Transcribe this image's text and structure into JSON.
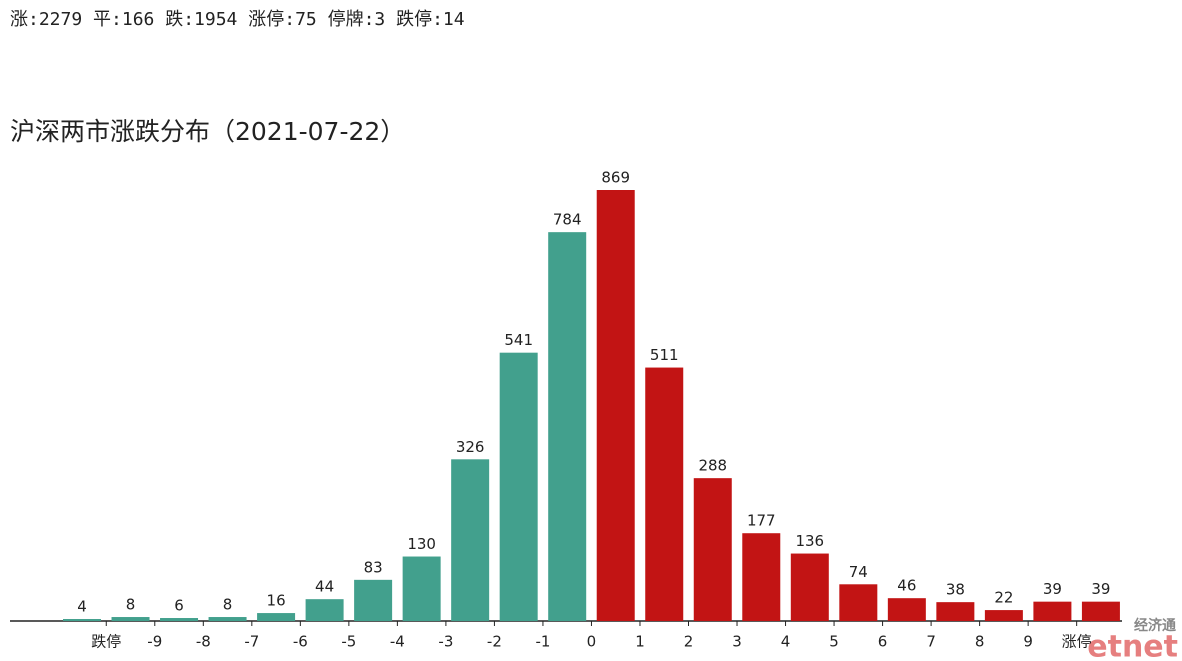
{
  "chart_data": {
    "type": "bar",
    "subtitle": "涨:2279 平:166 跌:1954 涨停:75 停牌:3 跌停:14",
    "title": "沪深两市涨跌分布（2021-07-22）",
    "categories": [
      null,
      null,
      null,
      null,
      null,
      null,
      null,
      null,
      null,
      null,
      null,
      null,
      null,
      null,
      null,
      null,
      null,
      null,
      null,
      null,
      null,
      null
    ],
    "xtick_labels": [
      "跌停",
      "-9",
      "-8",
      "-7",
      "-6",
      "-5",
      "-4",
      "-3",
      "-2",
      "-1",
      "0",
      "1",
      "2",
      "3",
      "4",
      "5",
      "6",
      "7",
      "8",
      "9",
      "涨停"
    ],
    "series": [
      {
        "color": "#42a08d",
        "values": [
          4,
          8,
          6,
          8,
          16,
          44,
          83,
          130,
          326,
          541,
          784,
          null,
          null,
          null,
          null,
          null,
          null,
          null,
          null,
          null,
          null,
          null
        ]
      },
      {
        "color": "#c21414",
        "values": [
          null,
          null,
          null,
          null,
          null,
          null,
          null,
          null,
          null,
          null,
          null,
          869,
          511,
          288,
          177,
          136,
          74,
          46,
          38,
          22,
          39,
          39
        ]
      }
    ],
    "watermark": [
      "经济通",
      "etnet"
    ]
  }
}
